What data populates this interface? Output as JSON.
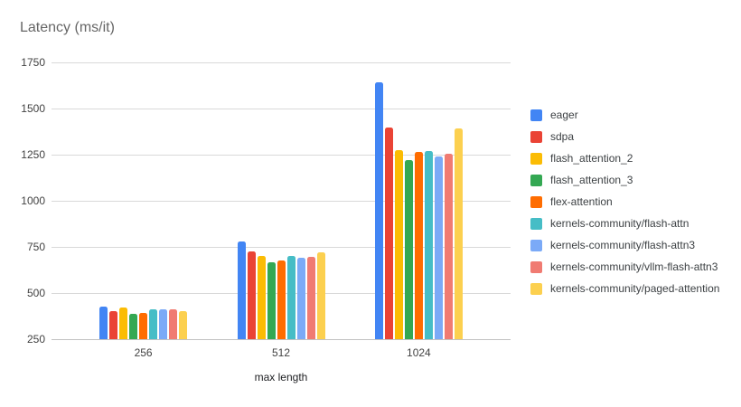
{
  "chart_data": {
    "type": "bar",
    "title": "Latency (ms/it)",
    "xlabel": "max length",
    "ylabel": "",
    "categories": [
      "256",
      "512",
      "1024"
    ],
    "series": [
      {
        "name": "eager",
        "color": "#4285F4",
        "values": [
          425,
          780,
          1640
        ]
      },
      {
        "name": "sdpa",
        "color": "#EA4335",
        "values": [
          400,
          725,
          1398
        ]
      },
      {
        "name": "flash_attention_2",
        "color": "#FBBC04",
        "values": [
          422,
          700,
          1275
        ]
      },
      {
        "name": "flash_attention_3",
        "color": "#34A853",
        "values": [
          386,
          669,
          1222
        ]
      },
      {
        "name": "flex-attention",
        "color": "#FF6D01",
        "values": [
          392,
          677,
          1263
        ]
      },
      {
        "name": "kernels-community/flash-attn",
        "color": "#46BDC6",
        "values": [
          414,
          701,
          1268
        ]
      },
      {
        "name": "kernels-community/flash-attn3",
        "color": "#7BAAF7",
        "values": [
          411,
          692,
          1242
        ]
      },
      {
        "name": "kernels-community/vllm-flash-attn3",
        "color": "#F07B72",
        "values": [
          413,
          694,
          1255
        ]
      },
      {
        "name": "kernels-community/paged-attention",
        "color": "#FCD04F",
        "values": [
          401,
          721,
          1392
        ]
      }
    ],
    "ylim": [
      250,
      1750
    ],
    "yticks": [
      250,
      500,
      750,
      1000,
      1250,
      1500,
      1750
    ],
    "grid": true,
    "legend_position": "right"
  }
}
